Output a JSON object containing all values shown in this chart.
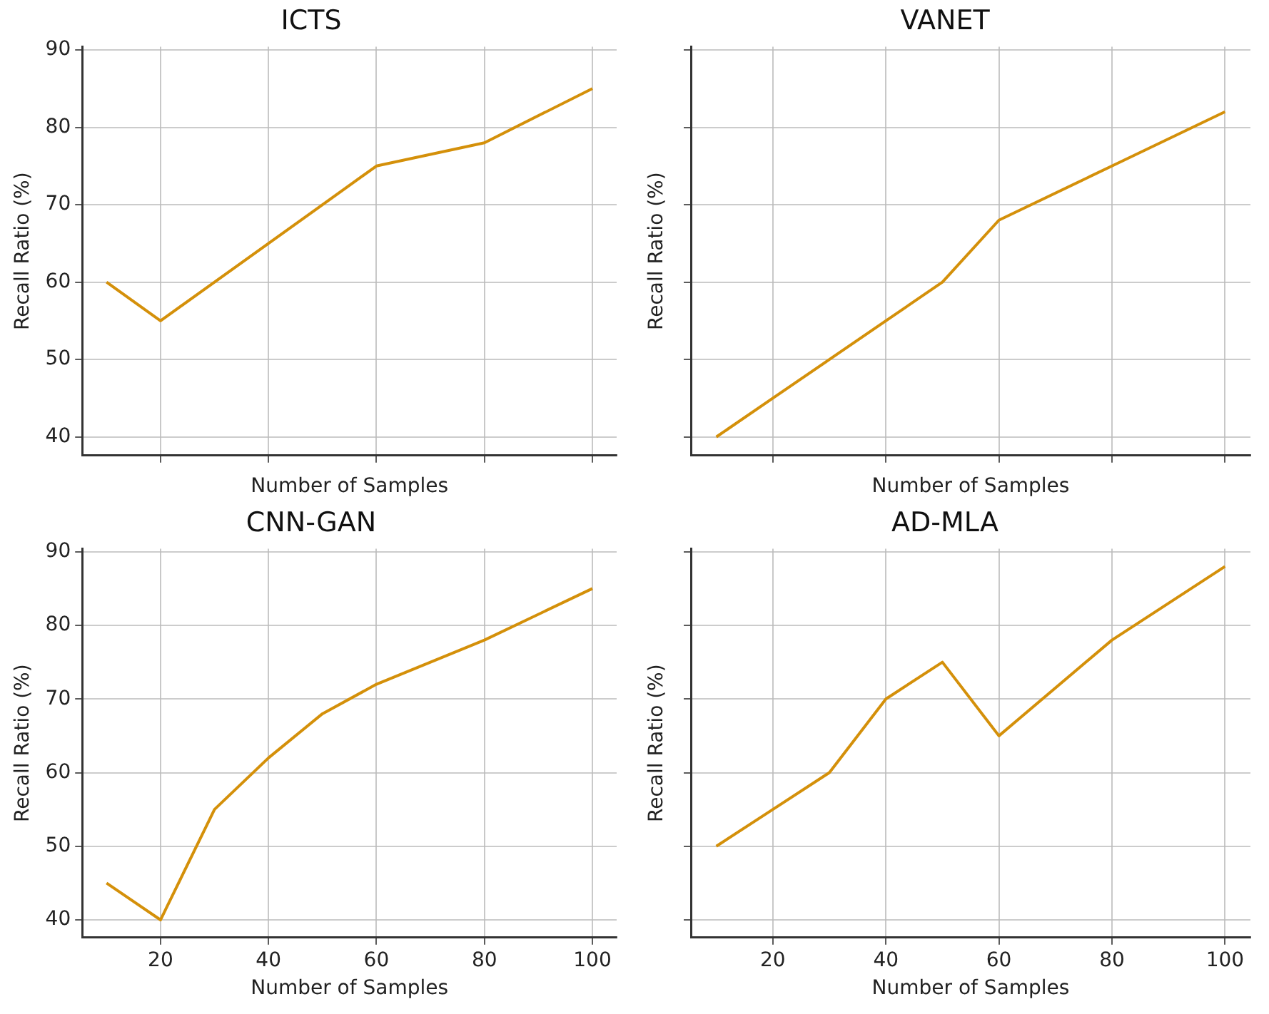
{
  "chart_data": [
    {
      "type": "line",
      "title": "ICTS",
      "xlabel": "Number of Samples",
      "ylabel": "Recall Ratio (%)",
      "x": [
        10,
        20,
        30,
        40,
        50,
        60,
        80,
        100
      ],
      "series": [
        {
          "color": "#d4900a",
          "values": [
            60,
            55,
            60,
            65,
            70,
            75,
            78,
            85
          ]
        }
      ],
      "xlim": [
        5.5,
        104.5
      ],
      "xticks": [
        20,
        40,
        60,
        80,
        100
      ],
      "ylim": [
        37.6,
        90.4
      ],
      "yticks": [
        40,
        50,
        60,
        70,
        80,
        90
      ],
      "grid": true,
      "line_style": "solid",
      "tick_labels": "y"
    },
    {
      "type": "line",
      "title": "VANET",
      "xlabel": "Number of Samples",
      "ylabel": "Recall Ratio (%)",
      "x": [
        10,
        20,
        30,
        40,
        50,
        60,
        80,
        100
      ],
      "series": [
        {
          "color": "#d4900a",
          "values": [
            40,
            45,
            50,
            55,
            60,
            68,
            75,
            82
          ]
        }
      ],
      "xlim": [
        5.5,
        104.5
      ],
      "xticks": [
        20,
        40,
        60,
        80,
        100
      ],
      "ylim": [
        37.6,
        90.4
      ],
      "yticks": [
        40,
        50,
        60,
        70,
        80,
        90
      ],
      "grid": true,
      "line_style": "solid",
      "tick_labels": false
    },
    {
      "type": "line",
      "title": "CNN-GAN",
      "xlabel": "Number of Samples",
      "ylabel": "Recall Ratio (%)",
      "x": [
        10,
        20,
        30,
        40,
        50,
        60,
        80,
        100
      ],
      "series": [
        {
          "color": "#d4900a",
          "values": [
            45,
            40,
            55,
            62,
            68,
            72,
            78,
            85
          ]
        }
      ],
      "xlim": [
        5.5,
        104.5
      ],
      "xticks": [
        20,
        40,
        60,
        80,
        100
      ],
      "ylim": [
        37.6,
        90.4
      ],
      "yticks": [
        40,
        50,
        60,
        70,
        80,
        90
      ],
      "grid": true,
      "line_style": "solid"
    },
    {
      "type": "line",
      "title": "AD-MLA",
      "xlabel": "Number of Samples",
      "ylabel": "Recall Ratio (%)",
      "x": [
        10,
        20,
        30,
        40,
        50,
        60,
        80,
        100
      ],
      "series": [
        {
          "color": "#d4900a",
          "values": [
            50,
            55,
            60,
            70,
            75,
            65,
            78,
            88
          ]
        }
      ],
      "xlim": [
        5.5,
        104.5
      ],
      "xticks": [
        20,
        40,
        60,
        80,
        100
      ],
      "ylim": [
        37.6,
        90.4
      ],
      "yticks": [
        40,
        50,
        60,
        70,
        80,
        90
      ],
      "grid": true,
      "line_style": "solid",
      "tick_labels": "x"
    }
  ]
}
